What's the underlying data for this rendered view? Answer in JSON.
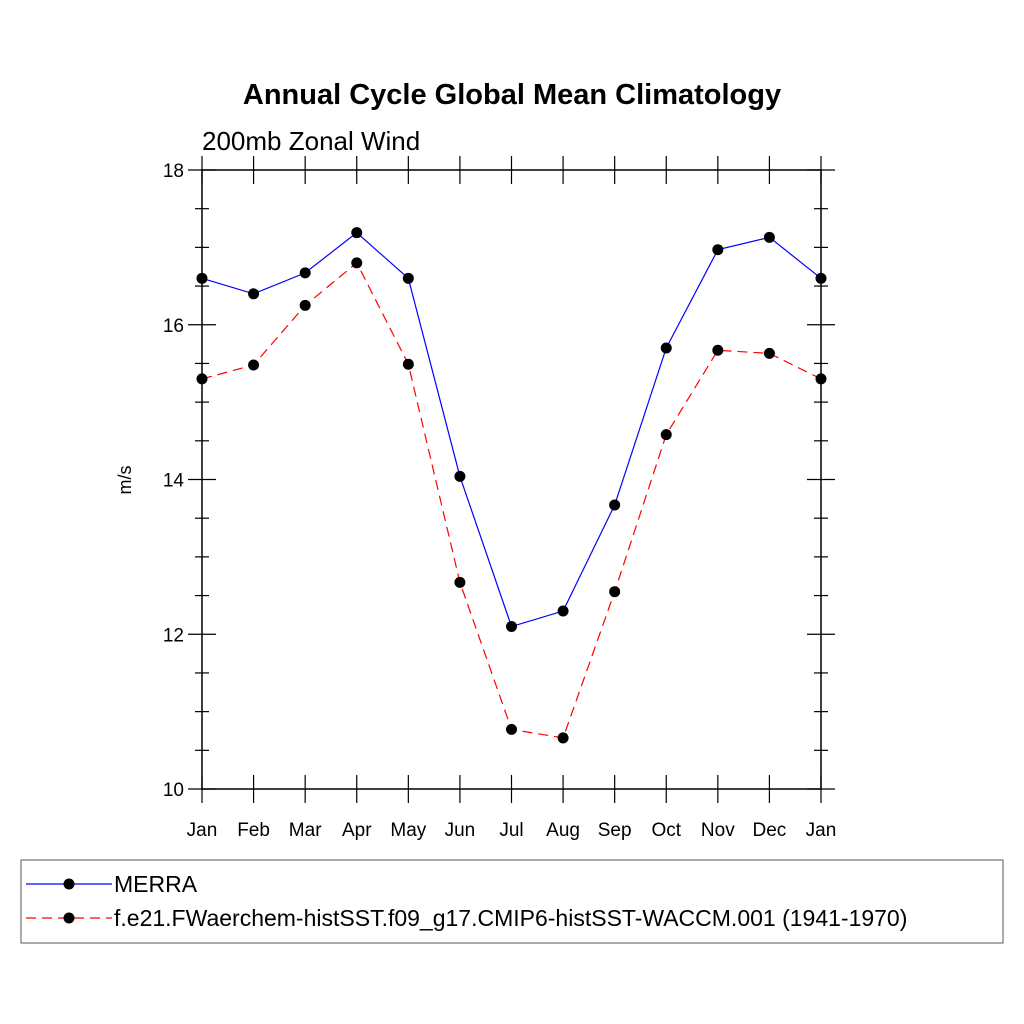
{
  "chart_data": {
    "type": "line",
    "title": "Annual Cycle Global Mean Climatology",
    "subtitle": "200mb Zonal Wind",
    "xlabel": "",
    "ylabel": "m/s",
    "categories": [
      "Jan",
      "Feb",
      "Mar",
      "Apr",
      "May",
      "Jun",
      "Jul",
      "Aug",
      "Sep",
      "Oct",
      "Nov",
      "Dec",
      "Jan"
    ],
    "ylim": [
      10,
      18
    ],
    "yticks": [
      "10",
      "12",
      "14",
      "16",
      "18"
    ],
    "grid": false,
    "legend_position": "bottom",
    "series": [
      {
        "name": "MERRA",
        "color": "#0000ff",
        "dash": "solid",
        "marker": "circle",
        "values": [
          16.6,
          16.4,
          16.67,
          17.19,
          16.6,
          14.04,
          12.1,
          12.3,
          13.67,
          15.7,
          16.97,
          17.13,
          16.6
        ]
      },
      {
        "name": "f.e21.FWaerchem-histSST.f09_g17.CMIP6-histSST-WACCM.001 (1941-1970)",
        "color": "#ff0000",
        "dash": "dashed",
        "marker": "circle",
        "values": [
          15.3,
          15.48,
          16.25,
          16.8,
          15.49,
          12.67,
          10.77,
          10.66,
          12.55,
          14.58,
          15.67,
          15.63,
          15.3
        ]
      }
    ]
  }
}
